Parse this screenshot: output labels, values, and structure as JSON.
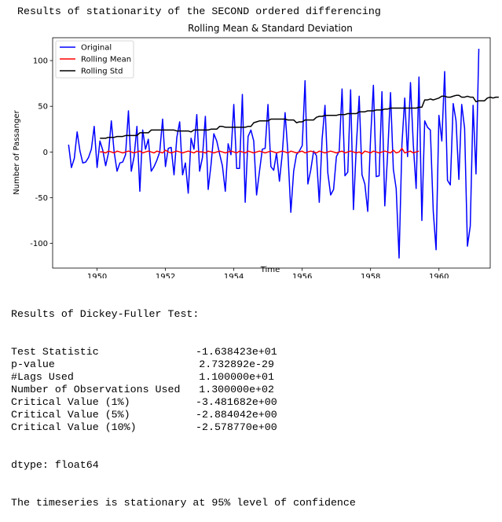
{
  "heading": "Results of stationarity of the SECOND ordered differencing",
  "chart_data": {
    "type": "line",
    "title": "Rolling Mean & Standard Deviation",
    "xlabel": "Time",
    "ylabel": "Number of Passanger",
    "xlim": [
      1948.7,
      1961.5
    ],
    "ylim": [
      -127,
      125
    ],
    "xticks": [
      1950,
      1952,
      1954,
      1956,
      1958,
      1960
    ],
    "yticks": [
      -100,
      -50,
      0,
      50,
      100
    ],
    "grid": false,
    "legend_position": "top-left",
    "series": [
      {
        "name": "Original",
        "color": "#0000ff",
        "x_start": 1949.1667,
        "x_step": 0.083333,
        "values": [
          8,
          -17,
          -7,
          22,
          1,
          -12,
          -11,
          -6,
          3,
          28,
          -17,
          12,
          2,
          -15,
          -1,
          34,
          0,
          -21,
          -12,
          -11,
          -3,
          45,
          -21,
          -5,
          28,
          -43,
          24,
          3,
          14,
          -21,
          -16,
          -9,
          0,
          36,
          -16,
          4,
          5,
          -25,
          16,
          33,
          -25,
          -12,
          -45,
          15,
          3,
          41,
          -21,
          -6,
          39,
          -41,
          -14,
          20,
          12,
          -2,
          -15,
          -43,
          9,
          -3,
          52,
          -18,
          -18,
          63,
          -55,
          17,
          24,
          12,
          -47,
          -21,
          3,
          4,
          52,
          -16,
          -20,
          -1,
          -32,
          -2,
          43,
          -1,
          -66,
          -21,
          -3,
          1,
          7,
          78,
          -35,
          -20,
          1,
          -4,
          -55,
          14,
          51,
          -23,
          -47,
          -41,
          -5,
          1,
          69,
          -26,
          -22,
          68,
          -63,
          7,
          61,
          -25,
          -35,
          -65,
          15,
          73,
          -27,
          -26,
          66,
          -59,
          -1,
          65,
          -19,
          -40,
          -116,
          8,
          59,
          -5,
          76,
          8,
          -40,
          82,
          -75,
          34,
          27,
          24,
          -65,
          -107,
          40,
          12,
          88,
          -31,
          -36,
          53,
          34,
          -30,
          52,
          26,
          -103,
          -81,
          51,
          -24,
          113
        ]
      },
      {
        "name": "Rolling Mean",
        "color": "#ff0000",
        "x_start": 1950.0833,
        "x_step": 0.083333,
        "values": [
          0,
          0,
          -1,
          1,
          0,
          -1,
          1,
          0,
          -1,
          0,
          1,
          0,
          -1,
          0,
          1,
          -1,
          0,
          1,
          0,
          -1,
          1,
          0,
          -1,
          2,
          0,
          -1,
          0,
          1,
          0,
          -1,
          0,
          1,
          0,
          -1,
          1,
          0,
          0,
          -1,
          1,
          0,
          -1,
          0,
          1,
          0,
          -1,
          0,
          1,
          0,
          -1,
          1,
          0,
          -1,
          1,
          0,
          -1,
          0,
          1,
          0,
          -1,
          0,
          1,
          0,
          -1,
          0,
          1,
          0,
          -1,
          1,
          0,
          -1,
          0,
          1,
          -1,
          0,
          1,
          0,
          -1,
          1,
          0,
          -1,
          0,
          1,
          0,
          -1,
          0,
          1,
          -1,
          0,
          1,
          0,
          -1,
          0,
          -2,
          1,
          0,
          -1,
          1,
          0,
          -1,
          0,
          1,
          0,
          -1,
          2,
          -1,
          0,
          4,
          -1,
          0,
          1,
          -1,
          0,
          1
        ]
      },
      {
        "name": "Rolling Std",
        "color": "#000000",
        "x_start": 1950.0833,
        "x_step": 0.083333,
        "values": [
          15,
          15,
          15,
          16,
          16,
          16,
          17,
          17,
          17,
          18,
          18,
          18,
          18,
          18,
          21,
          21,
          21,
          21,
          24,
          24,
          24,
          24,
          24,
          24,
          24,
          24,
          24,
          23,
          23,
          23,
          23,
          23,
          22,
          24,
          24,
          24,
          24,
          24,
          24,
          25,
          25,
          25,
          28,
          28,
          27,
          27,
          27,
          27,
          27,
          27,
          27,
          27,
          28,
          28,
          32,
          33,
          34,
          34,
          34,
          34,
          36,
          36,
          36,
          36,
          36,
          36,
          35,
          35,
          35,
          32,
          33,
          33,
          35,
          35,
          35,
          35,
          38,
          39,
          39,
          40,
          40,
          40,
          40,
          40,
          41,
          41,
          41,
          42,
          42,
          42,
          42,
          44,
          44,
          44,
          45,
          45,
          45,
          46,
          46,
          46,
          47,
          47,
          48,
          48,
          48,
          48,
          48,
          48,
          48,
          48,
          48,
          48,
          49,
          49,
          57,
          57,
          58,
          57,
          58,
          59,
          61,
          61,
          60,
          60,
          61,
          62,
          62,
          60,
          60,
          61,
          60,
          60,
          55,
          56,
          56,
          56,
          59,
          60,
          59,
          60,
          60
        ]
      }
    ]
  },
  "dickey_fuller": {
    "header": "Results of Dickey-Fuller Test:",
    "rows": [
      {
        "label": "Test Statistic",
        "value": "-1.638423e+01"
      },
      {
        "label": "p-value",
        "value": "2.732892e-29"
      },
      {
        "label": "#Lags Used",
        "value": "1.100000e+01"
      },
      {
        "label": "Number of Observations Used",
        "value": "1.300000e+02"
      },
      {
        "label": "Critical Value (1%)",
        "value": "-3.481682e+00"
      },
      {
        "label": "Critical Value (5%)",
        "value": "-2.884042e+00"
      },
      {
        "label": "Critical Value (10%)",
        "value": "-2.578770e+00"
      }
    ],
    "dtype": "dtype: float64",
    "conclusion": "The timeseries is stationary at 95% level of confidence"
  }
}
